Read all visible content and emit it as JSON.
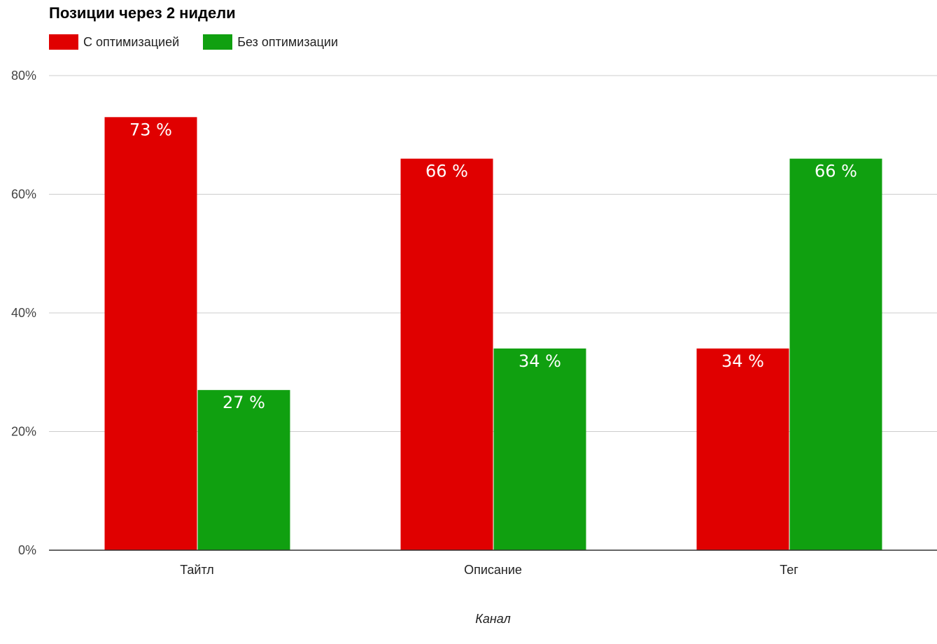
{
  "chart_data": {
    "type": "bar",
    "title": "Позиции через 2 нидели",
    "xlabel": "Канал",
    "ylabel": "",
    "categories": [
      "Тайтл",
      "Описание",
      "Тег"
    ],
    "series": [
      {
        "name": "С оптимизацией",
        "color": "#e00000",
        "values": [
          73,
          66,
          34
        ],
        "labels": [
          "73 %",
          "66 %",
          "34 %"
        ]
      },
      {
        "name": "Без оптимизации",
        "color": "#10a010",
        "values": [
          27,
          34,
          66
        ],
        "labels": [
          "27 %",
          "34 %",
          "66 %"
        ]
      }
    ],
    "ylim": [
      0,
      80
    ],
    "yticks": [
      0,
      20,
      40,
      60,
      80
    ],
    "ytick_labels": [
      "0%",
      "20%",
      "40%",
      "60%",
      "80%"
    ],
    "grid": true,
    "legend_position": "top-left"
  }
}
